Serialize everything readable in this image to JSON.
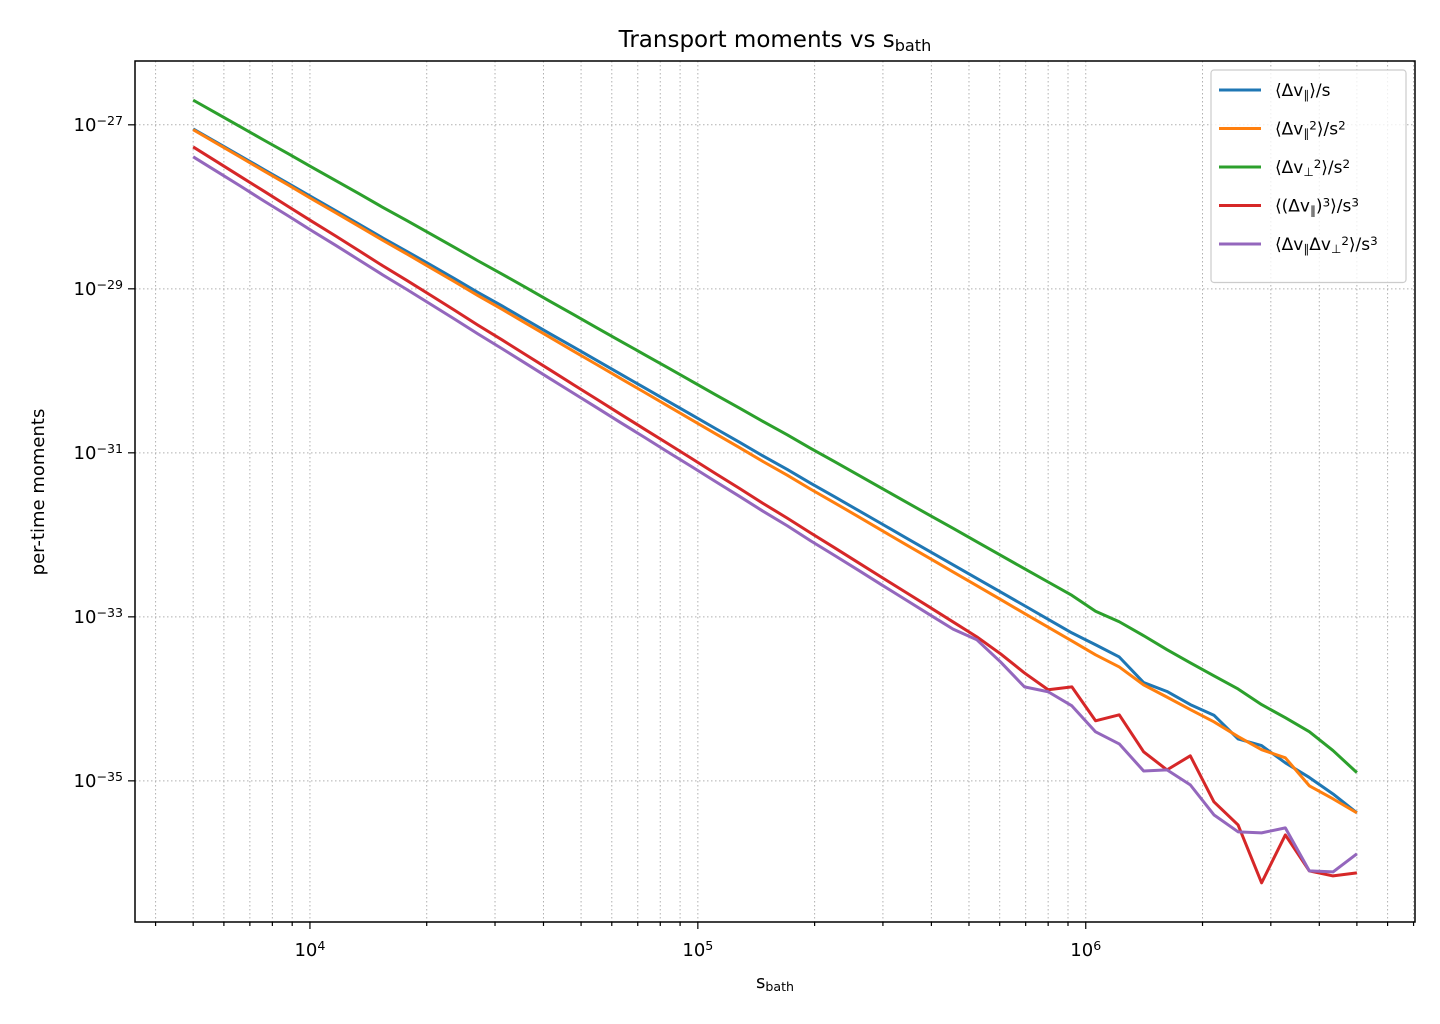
{
  "chart_data": {
    "type": "line",
    "title": "Transport moments vs s_{bath}",
    "xlabel": "s_{bath}",
    "ylabel": "per-time moments",
    "xscale": "log",
    "yscale": "log",
    "grid": true,
    "legend": "upper right",
    "xlim": [
      3540,
      7060000
    ],
    "ylim": [
      1.9e-37,
      6e-27
    ],
    "xticks": [
      {
        "value": 10000,
        "label": "10^{4}"
      },
      {
        "value": 100000,
        "label": "10^{5}"
      },
      {
        "value": 1000000,
        "label": "10^{6}"
      }
    ],
    "xminorticks": [
      4000,
      5000,
      6000,
      7000,
      8000,
      9000,
      20000,
      30000,
      40000,
      50000,
      60000,
      70000,
      80000,
      90000,
      200000,
      300000,
      400000,
      500000,
      600000,
      700000,
      800000,
      900000,
      2000000,
      3000000,
      4000000,
      5000000,
      6000000,
      7000000
    ],
    "yticks": [
      {
        "value": 1e-27,
        "label": "10^{−27}"
      },
      {
        "value": 1e-29,
        "label": "10^{−29}"
      },
      {
        "value": 1e-31,
        "label": "10^{−31}"
      },
      {
        "value": 1e-33,
        "label": "10^{−33}"
      },
      {
        "value": 1e-35,
        "label": "10^{−35}"
      }
    ],
    "x": [
      5000,
      5760,
      6630,
      7630,
      8790,
      10100,
      11650,
      13400,
      15400,
      17800,
      20500,
      23600,
      27100,
      31300,
      36000,
      41400,
      47700,
      54900,
      63200,
      72800,
      83800,
      96500,
      111000,
      128000,
      147000,
      170000,
      195000,
      225000,
      259000,
      298000,
      343000,
      395000,
      455000,
      524000,
      603000,
      695000,
      800000,
      921000,
      1060000,
      1220000,
      1410000,
      1620000,
      1860000,
      2140000,
      2470000,
      2840000,
      3270000,
      3770000,
      4340000,
      5000000
    ],
    "series": [
      {
        "name": "⟨Δv_{∥}⟩/s",
        "color": "#1f77b4",
        "values": [
          8.9e-28,
          6.08e-28,
          4.15e-28,
          2.83e-28,
          1.93e-28,
          1.32e-28,
          8.98e-29,
          6.13e-29,
          4.18e-29,
          2.85e-29,
          1.95e-29,
          1.33e-29,
          9.05e-30,
          6.18e-30,
          4.21e-30,
          2.87e-30,
          1.96e-30,
          1.34e-30,
          9.12e-31,
          6.23e-31,
          4.25e-31,
          2.9e-31,
          1.98e-31,
          1.35e-31,
          9.2e-32,
          6.27e-32,
          4.28e-32,
          2.92e-32,
          1.99e-32,
          1.36e-32,
          9.27e-33,
          6.32e-33,
          4.31e-33,
          2.94e-33,
          2.01e-33,
          1.37e-33,
          9.34e-34,
          6.37e-34,
          4.57e-34,
          3.24e-34,
          1.58e-34,
          1.23e-34,
          8.51e-35,
          6.31e-35,
          3.24e-35,
          2.69e-35,
          1.66e-35,
          1.1e-35,
          6.92e-36,
          4.07e-36
        ]
      },
      {
        "name": "⟨Δv_{∥}^{2}⟩/s^{2}",
        "color": "#ff7f0e",
        "values": [
          8.71e-28,
          5.91e-28,
          4.01e-28,
          2.72e-28,
          1.85e-28,
          1.25e-28,
          8.49e-29,
          5.76e-29,
          3.91e-29,
          2.65e-29,
          1.8e-29,
          1.22e-29,
          8.28e-30,
          5.62e-30,
          3.81e-30,
          2.59e-30,
          1.75e-30,
          1.19e-30,
          8.07e-31,
          5.48e-31,
          3.72e-31,
          2.52e-31,
          1.71e-31,
          1.16e-31,
          7.87e-32,
          5.34e-32,
          3.62e-32,
          2.46e-32,
          1.67e-32,
          1.13e-32,
          7.67e-33,
          5.21e-33,
          3.53e-33,
          2.4e-33,
          1.63e-33,
          1.1e-33,
          7.48e-34,
          5.08e-34,
          3.44e-34,
          2.45e-34,
          1.48e-34,
          1.05e-34,
          7.41e-35,
          5.25e-35,
          3.47e-35,
          2.4e-35,
          1.91e-35,
          8.71e-36,
          6.03e-36,
          4.07e-36
        ]
      },
      {
        "name": "⟨Δv_{⊥}^{2}⟩/s^{2}",
        "color": "#2ca02c",
        "values": [
          2e-27,
          1.37e-27,
          9.41e-28,
          6.46e-28,
          4.44e-28,
          3.05e-28,
          2.09e-28,
          1.44e-28,
          9.87e-29,
          6.78e-29,
          4.66e-29,
          3.2e-29,
          2.2e-29,
          1.51e-29,
          1.04e-29,
          7.11e-30,
          4.88e-30,
          3.35e-30,
          2.3e-30,
          1.58e-30,
          1.09e-30,
          7.46e-31,
          5.12e-31,
          3.52e-31,
          2.42e-31,
          1.66e-31,
          1.14e-31,
          7.83e-32,
          5.38e-32,
          3.69e-32,
          2.54e-32,
          1.74e-32,
          1.2e-32,
          8.21e-33,
          5.64e-33,
          3.87e-33,
          2.66e-33,
          1.83e-33,
          1.17e-33,
          8.71e-34,
          5.89e-34,
          3.98e-34,
          2.75e-34,
          1.91e-34,
          1.32e-34,
          8.51e-35,
          5.89e-35,
          3.98e-35,
          2.34e-35,
          1.26e-35
        ]
      },
      {
        "name": "⟨(Δv_{∥})^{3}⟩/s^{3}",
        "color": "#d62728",
        "values": [
          5.37e-28,
          3.54e-28,
          2.33e-28,
          1.54e-28,
          1.01e-28,
          6.68e-29,
          4.41e-29,
          2.9e-29,
          1.91e-29,
          1.26e-29,
          8.32e-30,
          5.48e-30,
          3.61e-30,
          2.38e-30,
          1.57e-30,
          1.04e-30,
          6.82e-31,
          4.5e-31,
          2.96e-31,
          1.95e-31,
          1.29e-31,
          8.49e-32,
          5.6e-32,
          3.69e-32,
          2.43e-32,
          1.6e-32,
          1.06e-32,
          6.97e-33,
          4.59e-33,
          3.03e-33,
          2e-33,
          1.32e-33,
          8.67e-34,
          5.7e-34,
          3.54e-34,
          2.07e-34,
          1.29e-34,
          1.4e-34,
          5.4e-35,
          6.38e-35,
          2.26e-35,
          1.36e-35,
          2.02e-35,
          5.55e-36,
          2.9e-36,
          5.7e-37,
          2.19e-36,
          7.98e-37,
          6.93e-37,
          7.55e-37
        ]
      },
      {
        "name": "⟨Δv_{∥}Δv_{⊥}^{2}⟩/s^{3}",
        "color": "#9467bd",
        "values": [
          4.07e-28,
          2.69e-28,
          1.78e-28,
          1.17e-28,
          7.76e-29,
          5.13e-29,
          3.39e-29,
          2.24e-29,
          1.48e-29,
          9.77e-30,
          6.46e-30,
          4.27e-30,
          2.82e-30,
          1.86e-30,
          1.23e-30,
          8.13e-31,
          5.37e-31,
          3.55e-31,
          2.34e-31,
          1.55e-31,
          1.02e-31,
          6.76e-32,
          4.47e-32,
          2.95e-32,
          1.95e-32,
          1.29e-32,
          8.51e-33,
          5.62e-33,
          3.72e-33,
          2.45e-33,
          1.62e-33,
          1.07e-33,
          7.08e-34,
          5.25e-34,
          2.82e-34,
          1.4e-34,
          1.22e-34,
          8.22e-35,
          3.96e-35,
          2.82e-35,
          1.32e-35,
          1.36e-35,
          8.93e-36,
          3.85e-36,
          2.39e-36,
          2.32e-36,
          2.67e-36,
          7.98e-37,
          7.76e-37,
          1.29e-36
        ]
      }
    ]
  }
}
